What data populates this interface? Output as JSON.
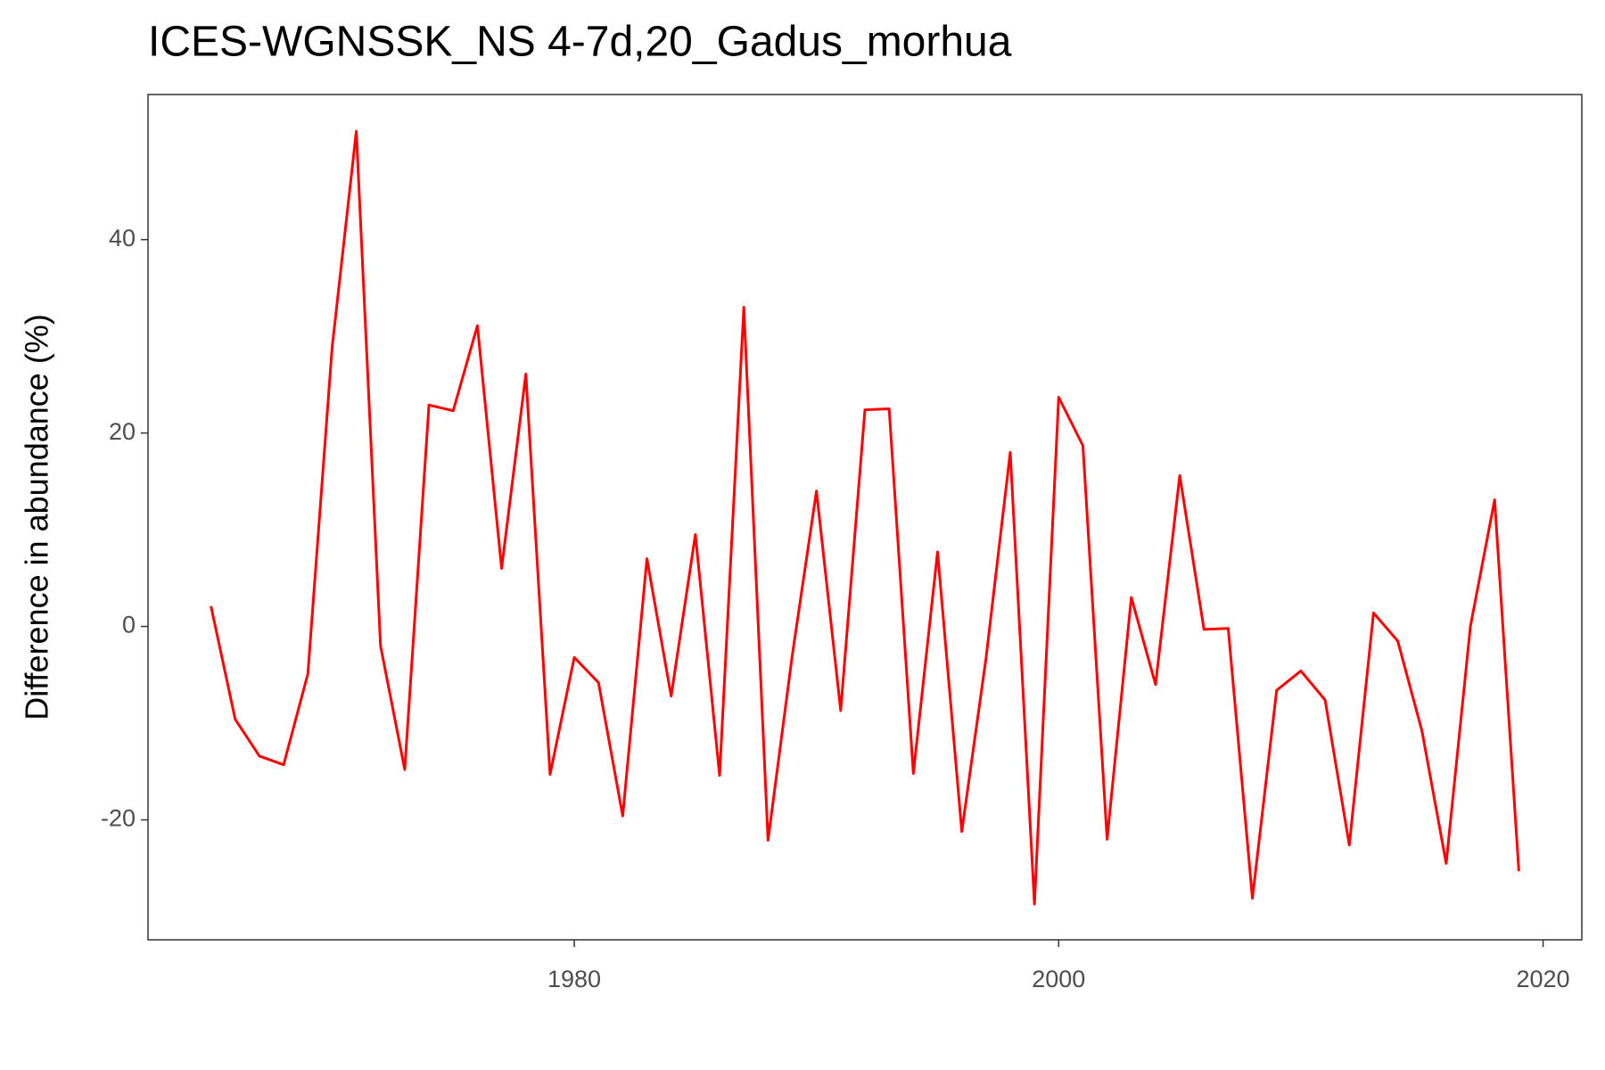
{
  "chart_data": {
    "type": "line",
    "title": "ICES-WGNSSK_NS 4-7d,20_Gadus_morhua",
    "y_label": "Difference in abundance (%)",
    "x": [
      1965,
      1966,
      1967,
      1968,
      1969,
      1970,
      1971,
      1972,
      1973,
      1974,
      1975,
      1976,
      1977,
      1978,
      1979,
      1980,
      1981,
      1982,
      1983,
      1984,
      1985,
      1986,
      1987,
      1988,
      1989,
      1990,
      1991,
      1992,
      1993,
      1994,
      1995,
      1996,
      1997,
      1998,
      1999,
      2000,
      2001,
      2002,
      2003,
      2004,
      2005,
      2006,
      2007,
      2008,
      2009,
      2010,
      2011,
      2012,
      2013,
      2014,
      2015,
      2016,
      2017,
      2018,
      2019
    ],
    "series": [
      {
        "color": "#ff0000",
        "values": [
          2.1,
          -9.6,
          -13.4,
          -14.3,
          -4.9,
          28.8,
          51.2,
          -2.0,
          -14.8,
          22.9,
          22.3,
          31.1,
          6.0,
          26.1,
          -15.3,
          -3.2,
          -5.8,
          -19.6,
          7.0,
          -7.2,
          9.5,
          -15.4,
          33.0,
          -22.1,
          -3.0,
          14.0,
          -8.7,
          22.4,
          22.5,
          -15.2,
          7.7,
          -21.2,
          -3.3,
          18.0,
          -28.7,
          23.7,
          18.7,
          -22.0,
          3.0,
          -6.0,
          15.6,
          -0.3,
          -0.2,
          -28.1,
          -6.6,
          -4.6,
          -7.6,
          -22.6,
          1.4,
          -1.5,
          -10.8,
          -24.5,
          0.0,
          13.1,
          -25.3
        ]
      }
    ],
    "xlim": [
      1962.4,
      2021.6
    ],
    "xticks": [
      1980,
      2000,
      2020
    ],
    "ylim": [
      -32.4,
      55.0
    ],
    "yticks": [
      -20,
      0,
      20,
      40
    ],
    "grid": false
  }
}
